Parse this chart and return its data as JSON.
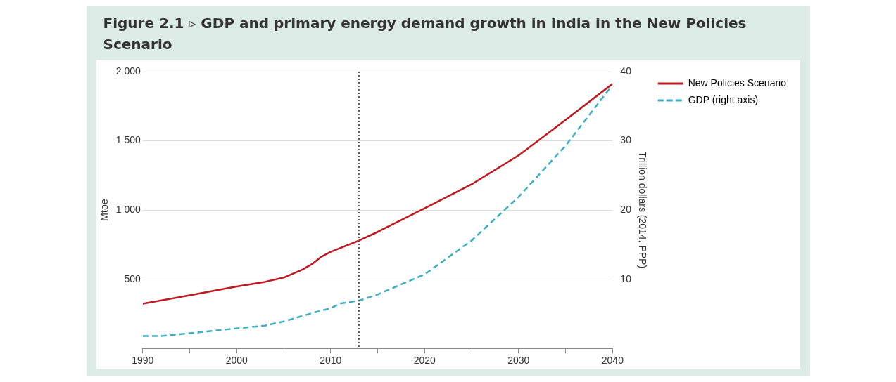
{
  "chart_data": {
    "type": "line",
    "title": "Figure 2.1 ▹ GDP and primary energy demand growth in India in the New Policies Scenario",
    "ylabel": "Mtoe",
    "y2label": "Trillion dollars (2014, PPP)",
    "xlim": [
      1990,
      2040
    ],
    "xticks": [
      1990,
      {
        "value": 1995,
        "label": null
      },
      2000,
      {
        "value": 2005,
        "label": null
      },
      2010,
      {
        "value": 2015,
        "label": null
      },
      2020,
      {
        "value": 2025,
        "label": null
      },
      2030,
      {
        "value": 2035,
        "label": null
      },
      2040
    ],
    "ylim": [
      0,
      2000
    ],
    "yticks": [
      {
        "value": 500,
        "label": "500"
      },
      {
        "value": 1000,
        "label": "1 000"
      },
      {
        "value": 1500,
        "label": "1 500"
      },
      {
        "value": 2000,
        "label": "2 000"
      }
    ],
    "y2lim": [
      0,
      40
    ],
    "y2ticks": [
      10,
      20,
      30,
      40
    ],
    "grid": "y",
    "legend": "right",
    "marker": "none",
    "ref_lines": [
      {
        "axis": "x",
        "value": 2013,
        "color": "#555555",
        "line_style": "dotted"
      }
    ],
    "series": [
      {
        "name": "New Policies Scenario",
        "color": "#c0181f",
        "line_style": "solid",
        "x": [
          1990,
          1995,
          2000,
          2003,
          2005,
          2007,
          2008,
          2009,
          2010,
          2013,
          2015,
          2020,
          2025,
          2030,
          2035,
          2040
        ],
        "values": [
          323,
          384,
          447,
          481,
          512,
          570,
          609,
          663,
          698,
          779,
          842,
          1012,
          1186,
          1395,
          1651,
          1912
        ]
      },
      {
        "name": "GDP (right axis)",
        "color": "#3aaec4",
        "line_style": "dashed",
        "axis": "y2",
        "x": [
          1990,
          1992,
          1995,
          2000,
          2003,
          2005,
          2008,
          2010,
          2011,
          2013,
          2015,
          2020,
          2025,
          2030,
          2035,
          2040
        ],
        "values": [
          1.8,
          1.8,
          2.2,
          2.9,
          3.3,
          3.9,
          5.1,
          5.8,
          6.5,
          6.9,
          7.8,
          10.7,
          15.6,
          21.9,
          29.3,
          38.1
        ]
      }
    ]
  }
}
